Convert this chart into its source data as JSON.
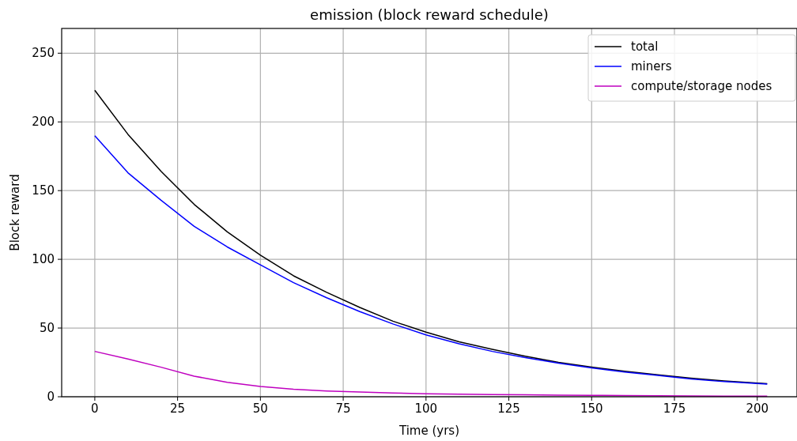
{
  "chart_data": {
    "type": "line",
    "title": "emission (block reward schedule)",
    "xlabel": "Time (yrs)",
    "ylabel": "Block reward",
    "xlim": [
      -10,
      212
    ],
    "ylim": [
      0,
      268
    ],
    "xticks": [
      0,
      25,
      50,
      75,
      100,
      125,
      150,
      175,
      200
    ],
    "yticks": [
      0,
      50,
      100,
      150,
      200,
      250
    ],
    "grid": true,
    "legend": "top right",
    "x": [
      0,
      10,
      20,
      30,
      40,
      50,
      60,
      70,
      80,
      90,
      100,
      110,
      120,
      130,
      140,
      150,
      160,
      170,
      180,
      190,
      203
    ],
    "series": [
      {
        "name": "total",
        "color": "#000000",
        "values": [
          223,
          191,
          164,
          140,
          120,
          103,
          88,
          76,
          65,
          55,
          47,
          40,
          34.5,
          29.5,
          25,
          21.5,
          18.5,
          16,
          13.5,
          11.5,
          9.5
        ]
      },
      {
        "name": "miners",
        "color": "#0000ff",
        "values": [
          190,
          163,
          143,
          124,
          109,
          96,
          83,
          72,
          62,
          53,
          45,
          38.5,
          33,
          28.5,
          24.5,
          21,
          18,
          15.5,
          13,
          11,
          9.2
        ]
      },
      {
        "name": "compute/storage nodes",
        "color": "#bf00bf",
        "values": [
          33,
          27.5,
          21.5,
          15,
          10.5,
          7.5,
          5.5,
          4.2,
          3.4,
          2.7,
          2.2,
          1.9,
          1.6,
          1.4,
          1.2,
          1,
          0.9,
          0.7,
          0.6,
          0.5,
          0.4
        ]
      }
    ]
  }
}
